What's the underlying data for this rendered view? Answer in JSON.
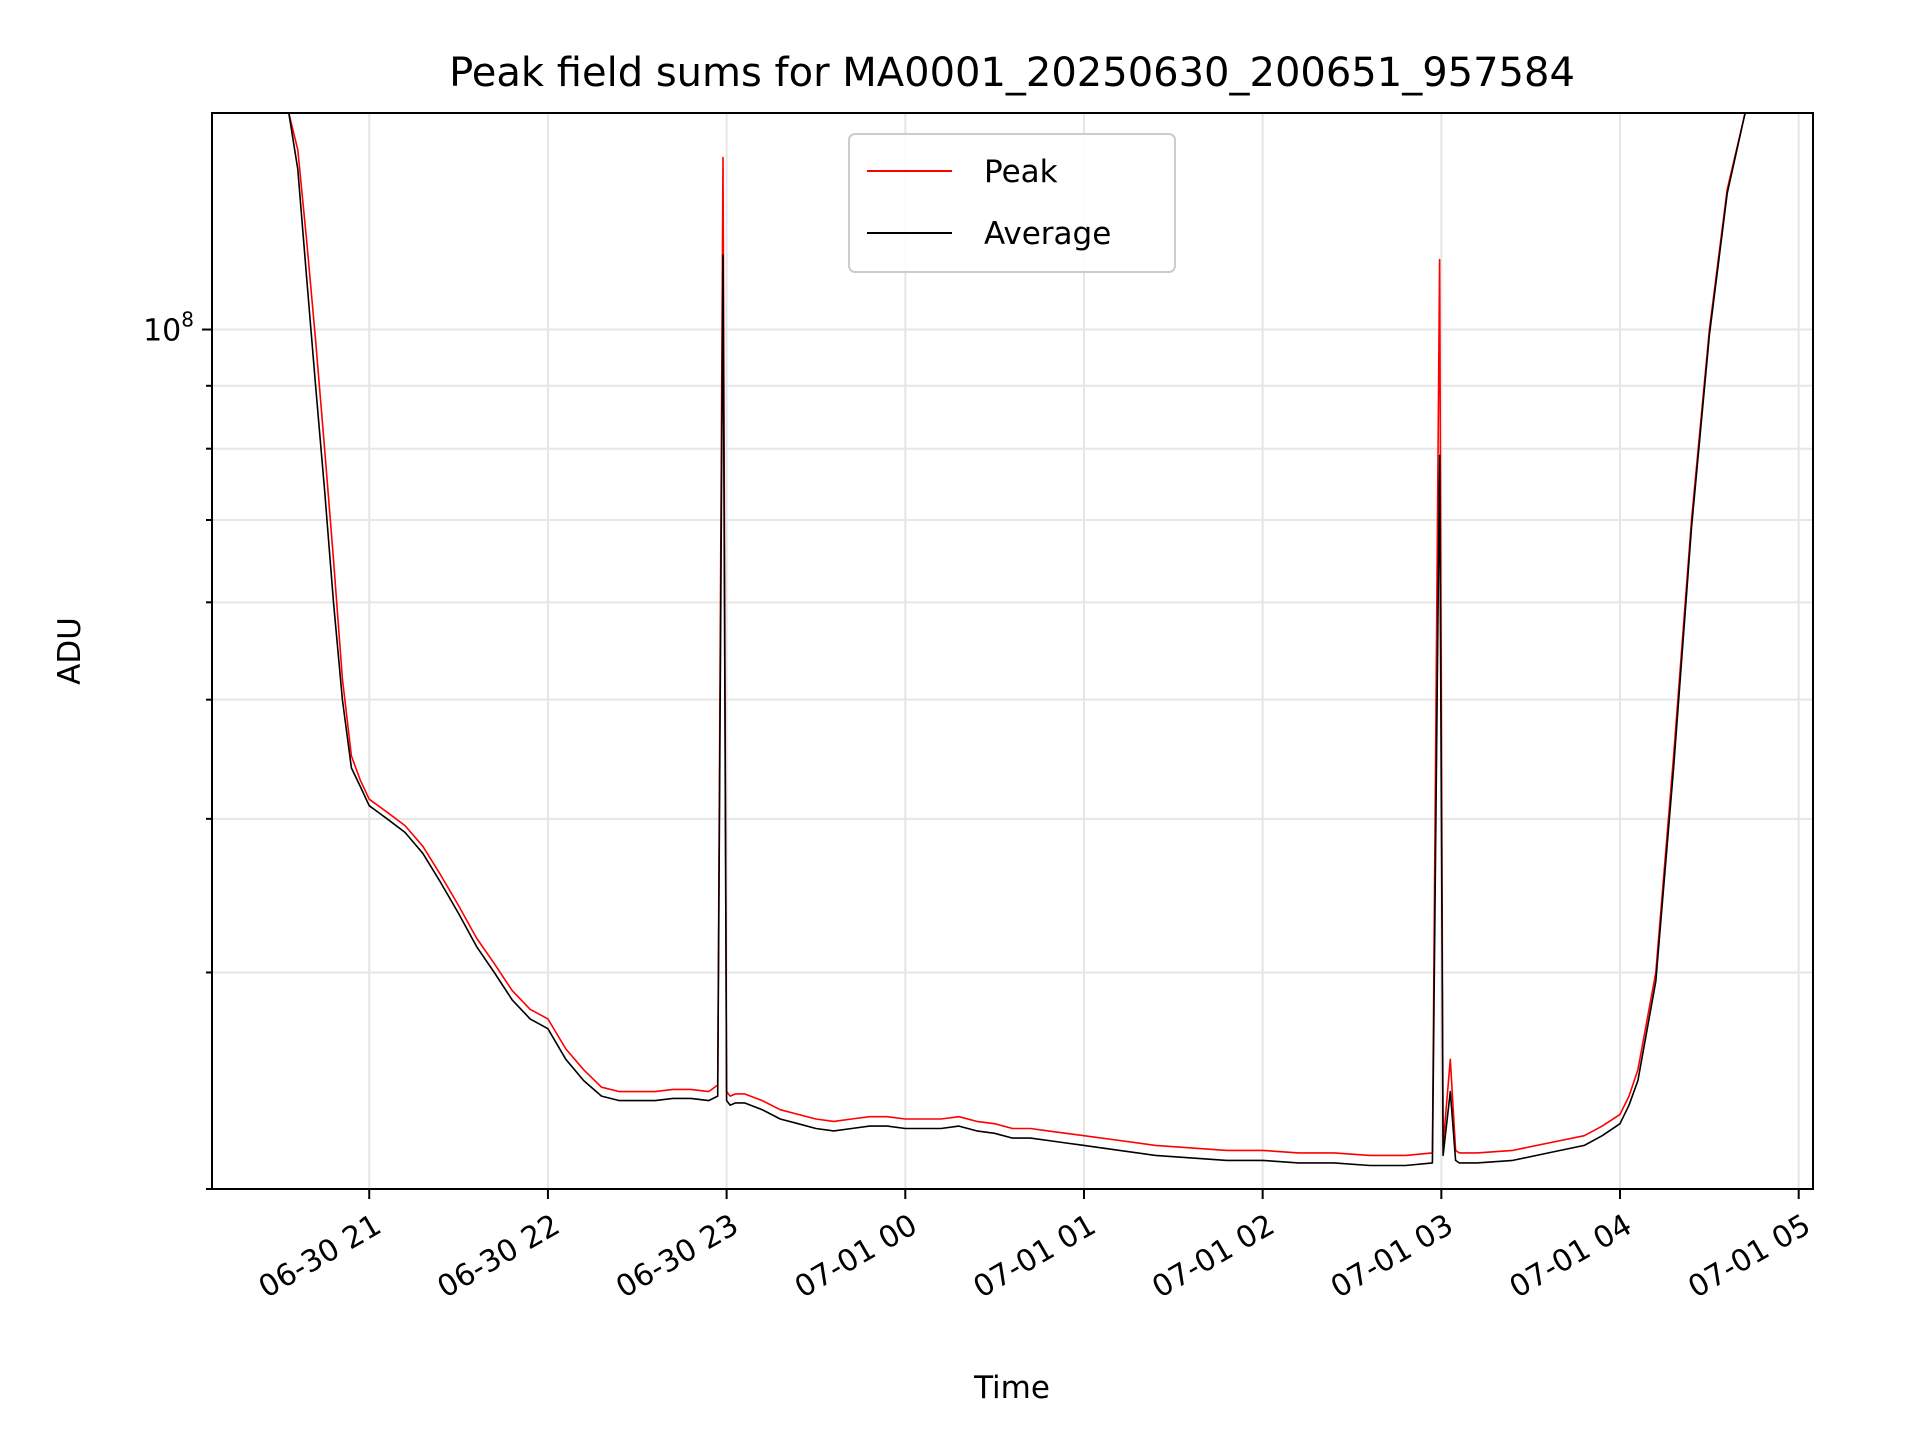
{
  "chart_data": {
    "type": "line",
    "title": "Peak field sums for MA0001_20250630_200651_957584",
    "xlabel": "Time",
    "ylabel": "ADU",
    "yscale": "log",
    "grid": true,
    "legend_position": "upper-center",
    "x_ticks": [
      "06-30 21",
      "06-30 22",
      "06-30 23",
      "07-01 00",
      "07-01 01",
      "07-01 02",
      "07-01 03",
      "07-01 04",
      "07-01 05"
    ],
    "x_tick_hours": [
      0,
      1,
      2,
      3,
      4,
      5,
      6,
      7,
      8
    ],
    "y_tick_label": "10^8",
    "y_tick_value": 100000000,
    "xlim_hours": [
      -0.88,
      8.08
    ],
    "ylim": [
      20000000,
      150000000
    ],
    "colors": {
      "peak": "#ff0000",
      "average": "#000000"
    },
    "series": [
      {
        "name": "Peak",
        "color": "#ff0000",
        "x_hours": [
          -0.88,
          -0.45,
          -0.4,
          -0.35,
          -0.3,
          -0.25,
          -0.2,
          -0.15,
          -0.1,
          -0.05,
          0,
          0.1,
          0.2,
          0.3,
          0.4,
          0.5,
          0.6,
          0.7,
          0.8,
          0.9,
          1,
          1.1,
          1.2,
          1.3,
          1.4,
          1.5,
          1.6,
          1.7,
          1.8,
          1.9,
          1.95,
          1.98,
          2.0,
          2.02,
          2.05,
          2.1,
          2.2,
          2.3,
          2.4,
          2.5,
          2.6,
          2.7,
          2.8,
          2.9,
          3.0,
          3.1,
          3.2,
          3.3,
          3.4,
          3.5,
          3.6,
          3.7,
          3.8,
          3.9,
          4.0,
          4.2,
          4.4,
          4.6,
          4.8,
          5.0,
          5.2,
          5.4,
          5.6,
          5.8,
          5.95,
          5.99,
          6.01,
          6.05,
          6.08,
          6.1,
          6.2,
          6.4,
          6.6,
          6.8,
          6.9,
          7.0,
          7.05,
          7.1,
          7.2,
          7.3,
          7.4,
          7.5,
          7.6,
          7.7,
          7.8,
          7.9,
          8.0
        ],
        "values": [
          150000000,
          150000000,
          140000000,
          118000000,
          98000000,
          80000000,
          65000000,
          52000000,
          45000000,
          43000000,
          41500000,
          40500000,
          39500000,
          38000000,
          36000000,
          34000000,
          32000000,
          30500000,
          29000000,
          28000000,
          27500000,
          26000000,
          25000000,
          24200000,
          24000000,
          24000000,
          24000000,
          24100000,
          24100000,
          24000000,
          24300000,
          138000000,
          24000000,
          23800000,
          23900000,
          23900000,
          23600000,
          23200000,
          23000000,
          22800000,
          22700000,
          22800000,
          22900000,
          22900000,
          22800000,
          22800000,
          22800000,
          22900000,
          22700000,
          22600000,
          22400000,
          22400000,
          22300000,
          22200000,
          22100000,
          21900000,
          21700000,
          21600000,
          21500000,
          21500000,
          21400000,
          21400000,
          21300000,
          21300000,
          21400000,
          114000000,
          21700000,
          25500000,
          21500000,
          21400000,
          21400000,
          21500000,
          21800000,
          22100000,
          22500000,
          23000000,
          23800000,
          25000000,
          30000000,
          45000000,
          70000000,
          100000000,
          130000000,
          150000000,
          150000000,
          150000000,
          150000000
        ]
      },
      {
        "name": "Average",
        "color": "#000000",
        "x_hours": [
          -0.88,
          -0.45,
          -0.4,
          -0.35,
          -0.3,
          -0.25,
          -0.2,
          -0.15,
          -0.1,
          -0.05,
          0,
          0.1,
          0.2,
          0.3,
          0.4,
          0.5,
          0.6,
          0.7,
          0.8,
          0.9,
          1,
          1.1,
          1.2,
          1.3,
          1.4,
          1.5,
          1.6,
          1.7,
          1.8,
          1.9,
          1.95,
          1.98,
          2.0,
          2.02,
          2.05,
          2.1,
          2.2,
          2.3,
          2.4,
          2.5,
          2.6,
          2.7,
          2.8,
          2.9,
          3.0,
          3.1,
          3.2,
          3.3,
          3.4,
          3.5,
          3.6,
          3.7,
          3.8,
          3.9,
          4.0,
          4.2,
          4.4,
          4.6,
          4.8,
          5.0,
          5.2,
          5.4,
          5.6,
          5.8,
          5.95,
          5.99,
          6.01,
          6.05,
          6.08,
          6.1,
          6.2,
          6.4,
          6.6,
          6.8,
          6.9,
          7.0,
          7.05,
          7.1,
          7.2,
          7.3,
          7.4,
          7.5,
          7.6,
          7.7,
          7.8,
          7.9,
          8.0
        ],
        "values": [
          150000000,
          150000000,
          135000000,
          110000000,
          90000000,
          74000000,
          60000000,
          50000000,
          44000000,
          42500000,
          41000000,
          40000000,
          39000000,
          37500000,
          35500000,
          33500000,
          31500000,
          30000000,
          28500000,
          27500000,
          27000000,
          25500000,
          24500000,
          23800000,
          23600000,
          23600000,
          23600000,
          23700000,
          23700000,
          23600000,
          23800000,
          115000000,
          23600000,
          23400000,
          23500000,
          23500000,
          23200000,
          22800000,
          22600000,
          22400000,
          22300000,
          22400000,
          22500000,
          22500000,
          22400000,
          22400000,
          22400000,
          22500000,
          22300000,
          22200000,
          22000000,
          22000000,
          21900000,
          21800000,
          21700000,
          21500000,
          21300000,
          21200000,
          21100000,
          21100000,
          21000000,
          21000000,
          20900000,
          20900000,
          21000000,
          79000000,
          21300000,
          24000000,
          21100000,
          21000000,
          21000000,
          21100000,
          21400000,
          21700000,
          22100000,
          22600000,
          23400000,
          24500000,
          29500000,
          44000000,
          69000000,
          99000000,
          129000000,
          150000000,
          150000000,
          150000000,
          150000000
        ]
      }
    ]
  }
}
